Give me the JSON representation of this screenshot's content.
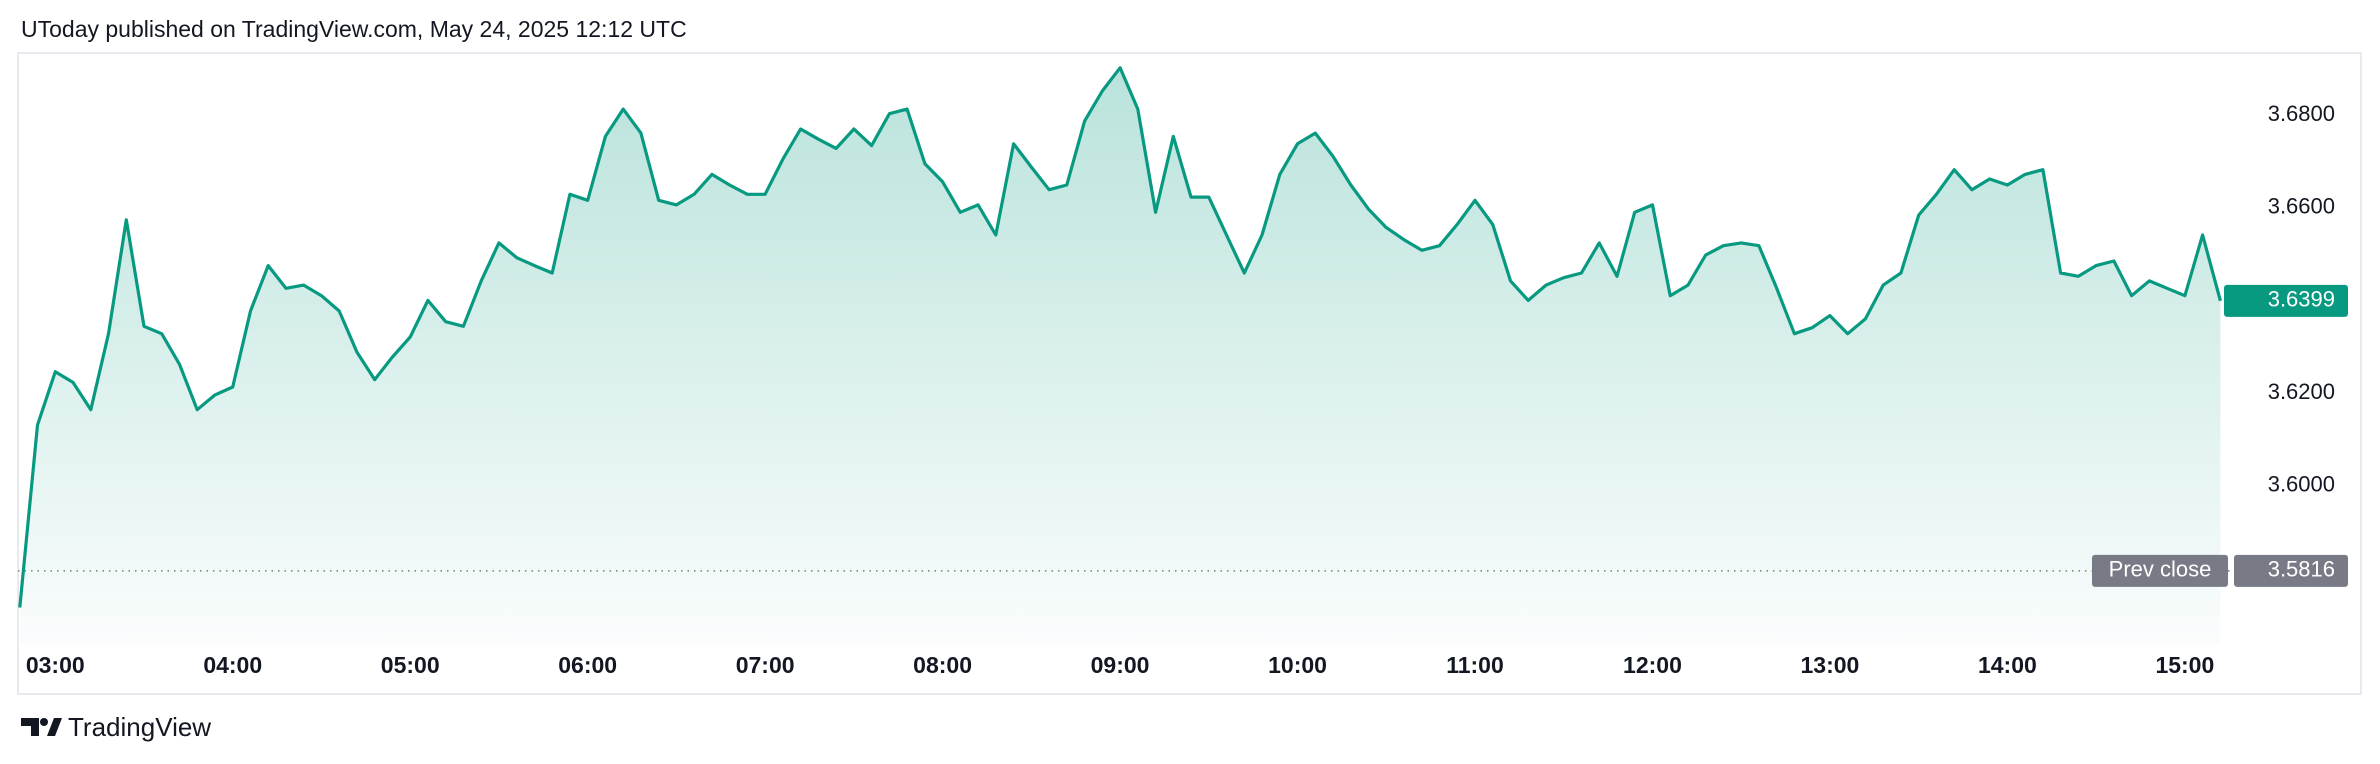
{
  "chart_data": {
    "type": "area",
    "title": "UToday published on TradingView.com, May 24, 2025 12:12 UTC",
    "branding": "TradingView",
    "color": "#089981",
    "x": [
      2.8,
      2.9,
      3,
      3.1,
      3.2,
      3.3,
      3.4,
      3.5,
      3.6,
      3.7,
      3.8,
      3.9,
      4,
      4.1,
      4.2,
      4.3,
      4.4,
      4.5,
      4.6,
      4.7,
      4.8,
      4.9,
      5,
      5.1,
      5.2,
      5.3,
      5.4,
      5.5,
      5.6,
      5.7,
      5.8,
      5.9,
      6,
      6.1,
      6.2,
      6.3,
      6.4,
      6.5,
      6.6,
      6.7,
      6.8,
      6.9,
      7,
      7.1,
      7.2,
      7.3,
      7.4,
      7.5,
      7.6,
      7.7,
      7.8,
      7.9,
      8,
      8.1,
      8.2,
      8.3,
      8.4,
      8.5,
      8.6,
      8.7,
      8.8,
      8.9,
      9,
      9.1,
      9.2,
      9.3,
      9.4,
      9.5,
      9.6,
      9.7,
      9.8,
      9.9,
      10,
      10.1,
      10.2,
      10.3,
      10.4,
      10.5,
      10.6,
      10.7,
      10.8,
      10.9,
      11,
      11.1,
      11.2,
      11.3,
      11.4,
      11.5,
      11.6,
      11.7,
      11.8,
      11.9,
      12,
      12.1,
      12.2,
      12.3,
      12.4,
      12.5,
      12.6,
      12.7,
      12.8,
      12.9,
      13,
      13.1,
      13.2,
      13.3,
      13.4,
      13.5,
      13.6,
      13.7,
      13.8,
      13.9,
      14,
      14.1,
      14.2,
      14.3,
      14.4,
      14.5,
      14.6,
      14.7,
      14.8,
      14.9,
      15,
      15.1,
      15.2
    ],
    "values": [
      3.5737,
      3.6131,
      3.6246,
      3.6223,
      3.6164,
      3.6328,
      3.6574,
      3.6344,
      3.6328,
      3.6262,
      3.6164,
      3.6196,
      3.6213,
      3.6377,
      3.6475,
      3.6426,
      3.6433,
      3.641,
      3.6377,
      3.6288,
      3.6229,
      3.6278,
      3.6321,
      3.64,
      3.6354,
      3.6344,
      3.6442,
      3.6524,
      3.6492,
      3.6475,
      3.6459,
      3.6629,
      3.6616,
      3.6754,
      3.6813,
      3.6761,
      3.6616,
      3.6606,
      3.6629,
      3.6672,
      3.6649,
      3.6629,
      3.6629,
      3.6705,
      3.677,
      3.6748,
      3.6728,
      3.677,
      3.6734,
      3.6803,
      3.6813,
      3.6695,
      3.6656,
      3.659,
      3.6606,
      3.6541,
      3.6738,
      3.6688,
      3.6639,
      3.6649,
      3.6787,
      3.6852,
      3.6902,
      3.6813,
      3.659,
      3.6754,
      3.6623,
      3.6623,
      3.6541,
      3.6459,
      3.6541,
      3.6672,
      3.6738,
      3.6761,
      3.6711,
      3.6649,
      3.6597,
      3.6557,
      3.6531,
      3.6508,
      3.6518,
      3.6564,
      3.6616,
      3.6564,
      3.6442,
      3.64,
      3.6433,
      3.6449,
      3.6459,
      3.6524,
      3.6452,
      3.659,
      3.6606,
      3.641,
      3.6433,
      3.6498,
      3.6518,
      3.6524,
      3.6518,
      3.6426,
      3.6328,
      3.6341,
      3.6367,
      3.6328,
      3.636,
      3.6433,
      3.6459,
      3.6584,
      3.6629,
      3.6682,
      3.6639,
      3.6662,
      3.6649,
      3.6672,
      3.6682,
      3.6459,
      3.6452,
      3.6475,
      3.6485,
      3.641,
      3.6442,
      3.6426,
      3.641,
      3.6541,
      3.6399
    ],
    "xlim": [
      2.79,
      15.26
    ],
    "xticks": [
      {
        "value": 3,
        "label": "03:00"
      },
      {
        "value": 4,
        "label": "04:00"
      },
      {
        "value": 5,
        "label": "05:00"
      },
      {
        "value": 6,
        "label": "06:00"
      },
      {
        "value": 7,
        "label": "07:00"
      },
      {
        "value": 8,
        "label": "08:00"
      },
      {
        "value": 9,
        "label": "09:00"
      },
      {
        "value": 10,
        "label": "10:00"
      },
      {
        "value": 11,
        "label": "11:00"
      },
      {
        "value": 12,
        "label": "12:00"
      },
      {
        "value": 13,
        "label": "13:00"
      },
      {
        "value": 14,
        "label": "14:00"
      },
      {
        "value": 15,
        "label": "15:00"
      }
    ],
    "ylim": [
      3.5656,
      3.6934
    ],
    "yticks": [
      {
        "value": 3.6,
        "label": "3.6000"
      },
      {
        "value": 3.62,
        "label": "3.6200"
      },
      {
        "value": 3.66,
        "label": "3.6600"
      },
      {
        "value": 3.68,
        "label": "3.6800"
      }
    ],
    "grid": false,
    "reference_line": {
      "label": "Prev close",
      "value": 3.5816,
      "color": "#787b86"
    }
  }
}
